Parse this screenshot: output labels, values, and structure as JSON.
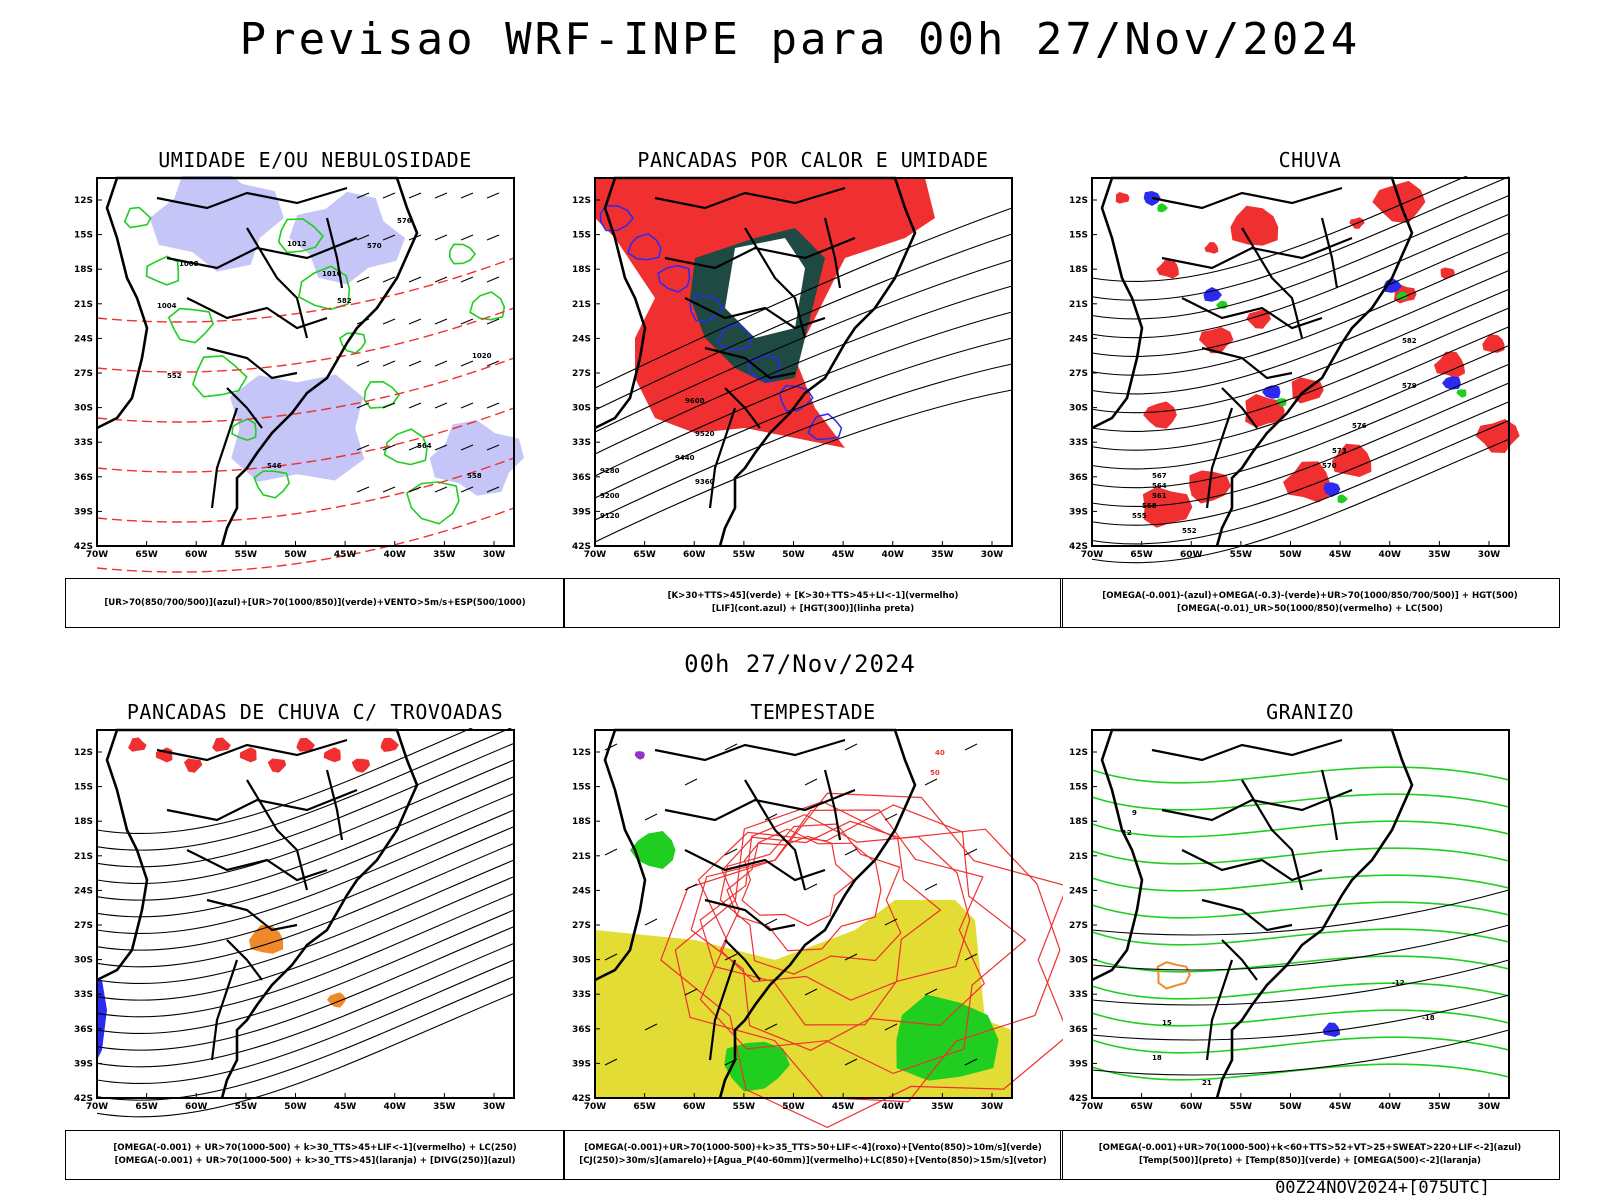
{
  "header": {
    "title": "Previsao WRF-INPE  para 00h 27/Nov/2024",
    "subtitle": "00h 27/Nov/2024",
    "footer": "00Z24NOV2024+[075UTC]"
  },
  "axes": {
    "lat_labels": [
      "12S",
      "15S",
      "18S",
      "21S",
      "24S",
      "27S",
      "30S",
      "33S",
      "36S",
      "39S",
      "42S"
    ],
    "lon_labels": [
      "70W",
      "65W",
      "60W",
      "55W",
      "50W",
      "45W",
      "40W",
      "35W",
      "30W"
    ]
  },
  "colors": {
    "green": "#1fce1f",
    "red": "#f03030",
    "blue": "#2a2af0",
    "lightblue": "#b7b7f5",
    "darkteal": "#1f4a44",
    "yellow": "#e3dc34",
    "orange": "#f0892a",
    "purple": "#9a30c8"
  },
  "panels": [
    {
      "title": "UMIDADE E/OU NEBULOSIDADE",
      "caption1": "[UR>70(850/700/500)](azul)+[UR>70(1000/850)](verde)+VENTO>5m/s+ESP(500/1000)",
      "caption2": "",
      "contour_labels": [
        "1012",
        "1008",
        "1016",
        "1020",
        "1004",
        "570",
        "576",
        "582",
        "552",
        "546",
        "564",
        "558"
      ]
    },
    {
      "title": "PANCADAS POR CALOR E UMIDADE",
      "caption1": "[K>30+TTS>45](verde) + [K>30+TTS>45+LI<-1](vermelho)",
      "caption2": "[LIF](cont.azul) + [HGT(300)](linha preta)",
      "contour_labels": [
        "9600",
        "9520",
        "9440",
        "9360",
        "9280",
        "9200",
        "9120"
      ]
    },
    {
      "title": "CHUVA",
      "caption1": "[OMEGA(-0.001)-(azul)+OMEGA(-0.3)-(verde)+UR>70(1000/850/700/500)] + HGT(500)",
      "caption2": "[OMEGA(-0.01)_UR>50(1000/850)(vermelho) + LC(500)",
      "contour_labels": [
        "582",
        "579",
        "576",
        "573",
        "570",
        "567",
        "564",
        "561",
        "558",
        "555",
        "552"
      ]
    },
    {
      "title": "PANCADAS DE CHUVA C/ TROVOADAS",
      "caption1": "[OMEGA(-0.001) + UR>70(1000-500) + k>30_TTS>45+LIF<-1](vermelho) + LC(250)",
      "caption2": "[OMEGA(-0.001) + UR>70(1000-500) + k>30_TTS>45](laranja) + [DIVG(250)](azul)",
      "contour_labels": []
    },
    {
      "title": "TEMPESTADE",
      "caption1": "[OMEGA(-0.001)+UR>70(1000-500)+k>35_TTS>50+LIF<-4](roxo)+[Vento(850)>10m/s](verde)",
      "caption2": "[CJ(250)>30m/s](amarelo)+[Agua_P(40-60mm)](vermelho)+LC(850)+[Vento(850)>15m/s](vetor)",
      "contour_labels": [
        "40",
        "50"
      ]
    },
    {
      "title": "GRANIZO",
      "caption1": "[OMEGA(-0.001)+UR>70(1000-500)+k<60+TTS>52+VT>25+SWEAT>220+LIF<-2](azul)",
      "caption2": "[Temp(500)](preto) + [Temp(850)](verde) + [OMEGA(500)<-2](laranja)",
      "contour_labels": [
        "-12",
        "-18",
        "9",
        "12",
        "15",
        "18",
        "21"
      ]
    }
  ]
}
